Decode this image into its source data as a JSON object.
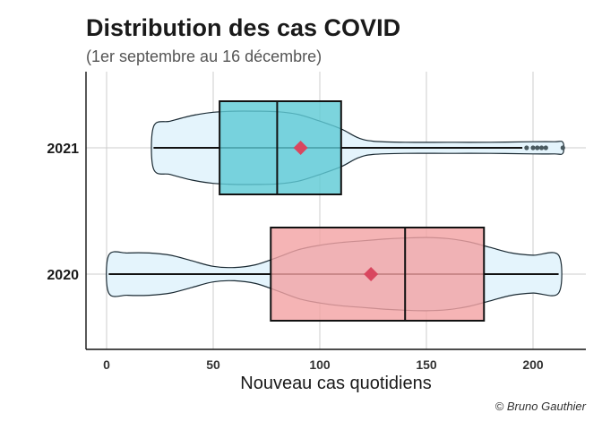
{
  "chart_data": {
    "type": "violin",
    "title": "Distribution des cas COVID",
    "subtitle": "(1er septembre au 16 décembre)",
    "xlabel": "Nouveau cas quotidiens",
    "ylabel": "",
    "caption": "© Bruno Gauthier",
    "xlim": [
      -10,
      225
    ],
    "xticks": [
      0,
      50,
      100,
      150,
      200
    ],
    "categories": [
      "2021",
      "2020"
    ],
    "grid": true,
    "colors": {
      "violin_fill": "#e4f4fc",
      "violin_stroke": "#1a2a33",
      "box_2021": "#5fcbd6",
      "box_2020": "#f3a3a5",
      "mean_marker": "#d9475f",
      "outlier": "#4a5a60",
      "grid": "#cccccc"
    },
    "groups": [
      {
        "name": "2021",
        "box_color": "#5fcbd6",
        "min": 22,
        "q1": 53,
        "median": 80,
        "q3": 110,
        "whisker_high": 195,
        "mean": 91,
        "max": 214,
        "outliers": [
          197,
          200,
          202,
          204,
          206,
          214
        ],
        "density": [
          [
            22,
            0.38
          ],
          [
            30,
            0.48
          ],
          [
            40,
            0.58
          ],
          [
            50,
            0.64
          ],
          [
            60,
            0.66
          ],
          [
            70,
            0.66
          ],
          [
            80,
            0.65
          ],
          [
            90,
            0.6
          ],
          [
            100,
            0.48
          ],
          [
            110,
            0.34
          ],
          [
            118,
            0.18
          ],
          [
            125,
            0.12
          ],
          [
            140,
            0.1
          ],
          [
            160,
            0.1
          ],
          [
            180,
            0.1
          ],
          [
            200,
            0.11
          ],
          [
            210,
            0.11
          ],
          [
            214,
            0.1
          ]
        ]
      },
      {
        "name": "2020",
        "box_color": "#f3a3a5",
        "min": 1,
        "q1": 77,
        "median": 140,
        "q3": 177,
        "whisker_high": 212,
        "mean": 124,
        "max": 212,
        "outliers": [],
        "density": [
          [
            1,
            0.34
          ],
          [
            10,
            0.38
          ],
          [
            20,
            0.38
          ],
          [
            30,
            0.34
          ],
          [
            40,
            0.24
          ],
          [
            50,
            0.14
          ],
          [
            60,
            0.12
          ],
          [
            70,
            0.17
          ],
          [
            80,
            0.3
          ],
          [
            90,
            0.44
          ],
          [
            100,
            0.52
          ],
          [
            110,
            0.57
          ],
          [
            120,
            0.6
          ],
          [
            130,
            0.63
          ],
          [
            140,
            0.65
          ],
          [
            150,
            0.66
          ],
          [
            160,
            0.64
          ],
          [
            170,
            0.58
          ],
          [
            180,
            0.48
          ],
          [
            190,
            0.38
          ],
          [
            200,
            0.34
          ],
          [
            212,
            0.34
          ]
        ]
      }
    ]
  }
}
